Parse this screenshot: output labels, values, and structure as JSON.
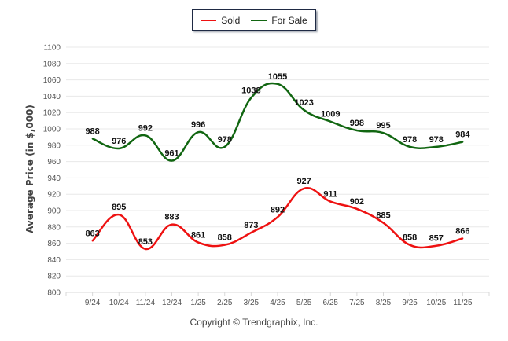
{
  "chart_data": {
    "type": "line",
    "title": "",
    "xlabel": "",
    "ylabel": "Average Price (in $,000)",
    "ylim": [
      800,
      1100
    ],
    "yticks": [
      800,
      820,
      840,
      860,
      880,
      900,
      920,
      940,
      960,
      980,
      1000,
      1020,
      1040,
      1060,
      1080,
      1100
    ],
    "grid": true,
    "legend_position": "top-center",
    "categories": [
      "9/24",
      "10/24",
      "11/24",
      "12/24",
      "1/25",
      "2/25",
      "3/25",
      "4/25",
      "5/25",
      "6/25",
      "7/25",
      "8/25",
      "9/25",
      "10/25",
      "11/25"
    ],
    "series": [
      {
        "name": "Sold",
        "color": "#ee1111",
        "values": [
          863,
          895,
          853,
          883,
          861,
          858,
          873,
          892,
          927,
          911,
          902,
          885,
          858,
          857,
          866
        ]
      },
      {
        "name": "For Sale",
        "color": "#116611",
        "values": [
          988,
          976,
          992,
          961,
          996,
          978,
          1038,
          1055,
          1023,
          1009,
          998,
          995,
          978,
          978,
          984
        ]
      }
    ]
  },
  "footer": {
    "copyright": "Copyright © Trendgraphix, Inc."
  }
}
